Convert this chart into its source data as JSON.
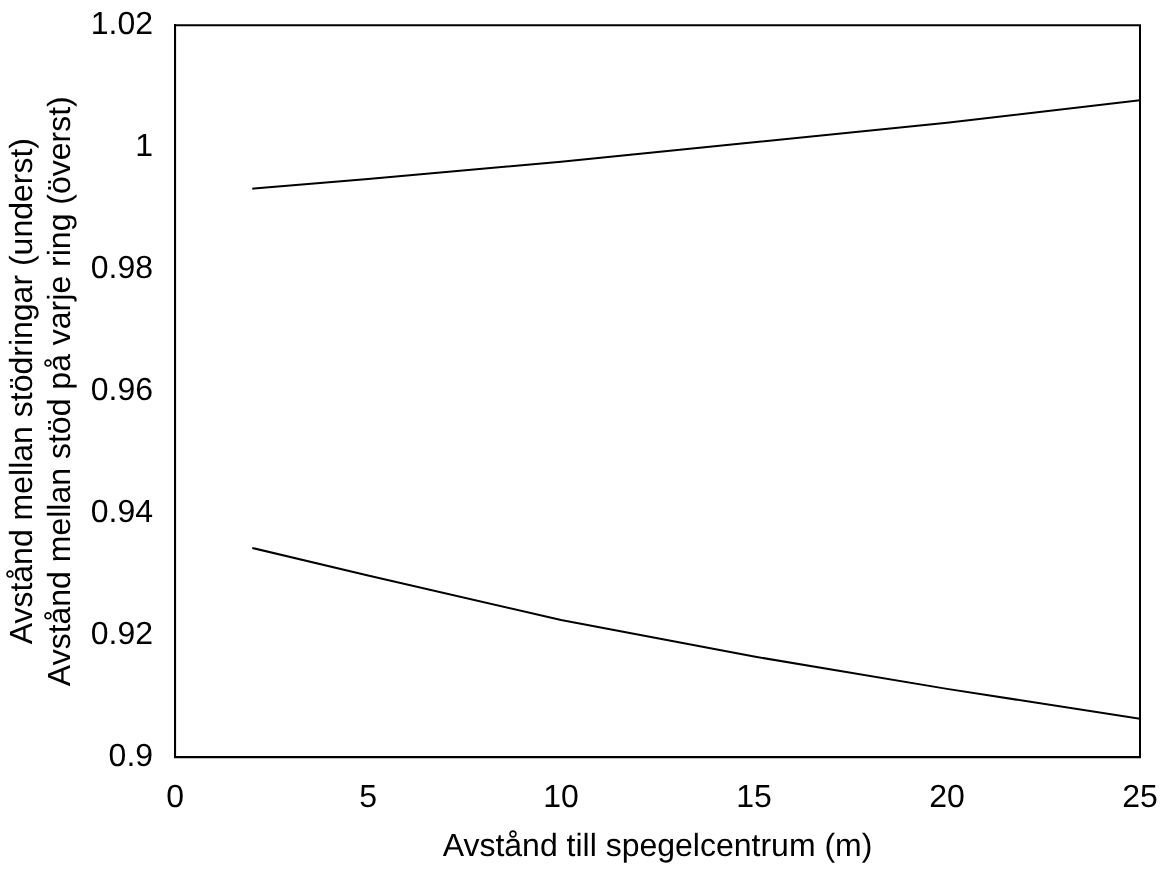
{
  "chart_data": {
    "type": "line",
    "xlabel": "Avstånd till spegelcentrum (m)",
    "ylabel": "Avstånd mellan stödringar (underst)\nAvstånd mellan stöd på varje ring (överst)",
    "series": [
      {
        "color": "#000000",
        "x": [
          2,
          5,
          10,
          15,
          20,
          25
        ],
        "values": [
          0.9932,
          0.9948,
          0.9976,
          1.0008,
          1.004,
          1.0077
        ]
      },
      {
        "color": "#000000",
        "x": [
          2,
          5,
          10,
          15,
          20,
          25
        ],
        "values": [
          0.9343,
          0.9298,
          0.9225,
          0.9165,
          0.9112,
          0.9063
        ]
      }
    ],
    "xlim": [
      0,
      25
    ],
    "xticks": [
      0,
      5,
      10,
      15,
      20,
      25
    ],
    "ylim": [
      0.9,
      1.02
    ],
    "yticks": [
      0.9,
      0.92,
      0.94,
      0.96,
      0.98,
      1,
      1.02
    ],
    "grid": false,
    "legend": false,
    "marker": "none",
    "line_style": "solid"
  }
}
